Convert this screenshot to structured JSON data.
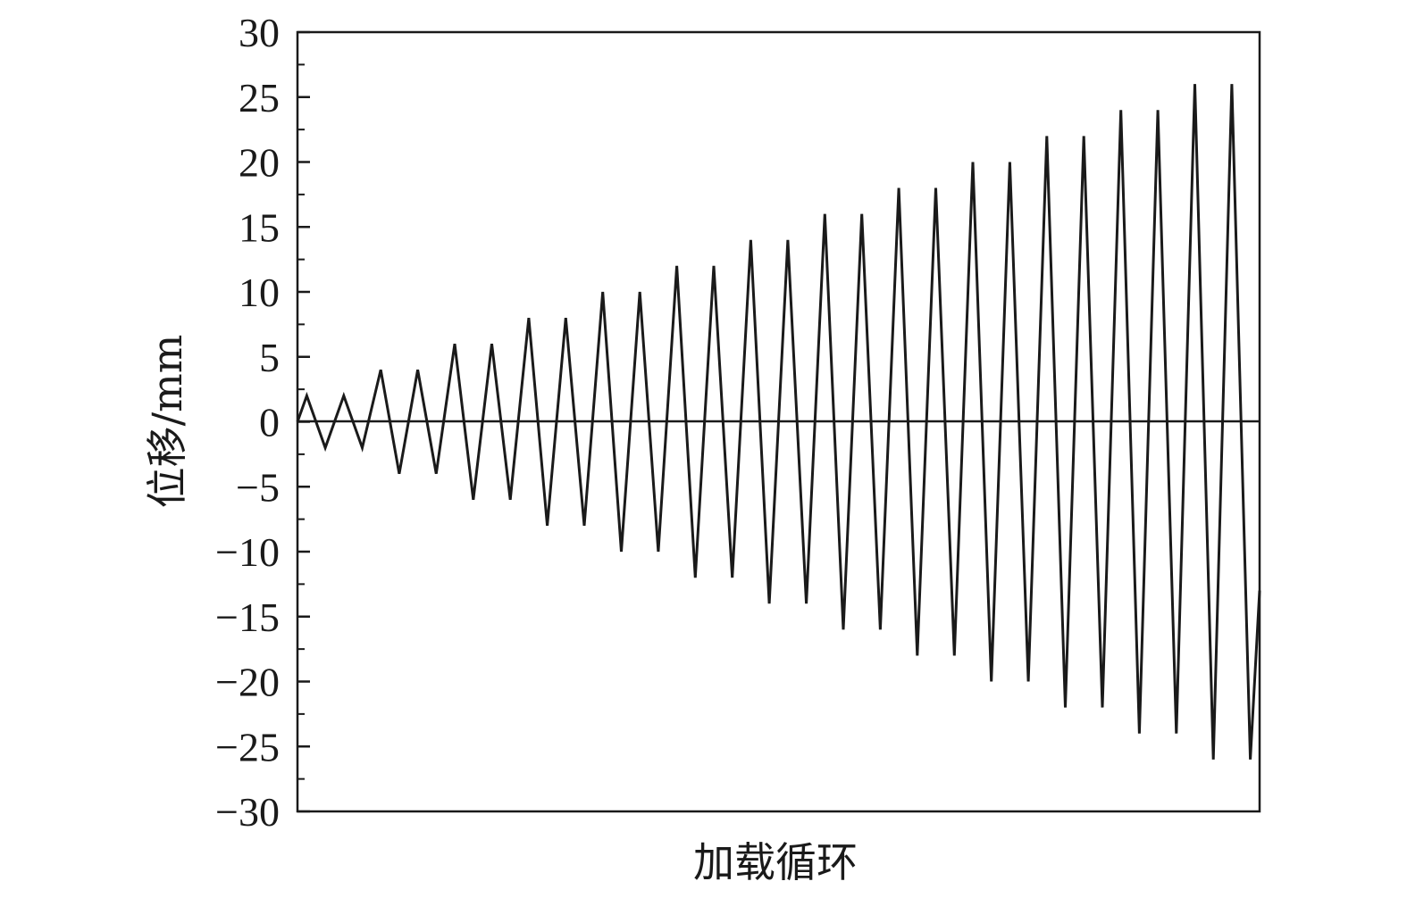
{
  "chart_data": {
    "type": "line",
    "title": "",
    "xlabel": "加载循环",
    "ylabel": "位移/mm",
    "ylim": [
      -30,
      30
    ],
    "yticks": [
      30,
      25,
      20,
      15,
      10,
      5,
      0,
      -5,
      -10,
      -15,
      -20,
      -25,
      -30
    ],
    "ytick_labels": [
      "30",
      "25",
      "20",
      "15",
      "10",
      "5",
      "0",
      "−5",
      "−10",
      "−15",
      "−20",
      "−25",
      "−30"
    ],
    "y_minor_ticks": true,
    "xticks": false,
    "grid": false,
    "legend": "none",
    "reference_line_y": 0,
    "line_color": "#1a1a1a",
    "series": [
      {
        "description": "cyclic loading displacement protocol, two cycles per amplitude",
        "amplitudes_mm": [
          2,
          2,
          4,
          4,
          6,
          6,
          8,
          8,
          10,
          10,
          12,
          12,
          14,
          14,
          16,
          16,
          18,
          18,
          20,
          20,
          22,
          22,
          24,
          24,
          26,
          26
        ],
        "x": [
          0,
          0.5,
          1.5,
          2.5,
          3.5,
          4.5,
          5.5,
          6.5,
          7.5,
          8.5,
          9.5,
          10.5,
          11.5,
          12.5,
          13.5,
          14.5,
          15.5,
          16.5,
          17.5,
          18.5,
          19.5,
          20.5,
          21.5,
          22.5,
          23.5,
          24.5,
          25.5,
          26.5,
          27.5,
          28.5,
          29.5,
          30.5,
          31.5,
          32.5,
          33.5,
          34.5,
          35.5,
          36.5,
          37.5,
          38.5,
          39.5,
          40.5,
          41.5,
          42.5,
          43.5,
          44.5,
          45.5,
          46.5,
          47.5,
          48.5,
          49.5,
          50.5,
          51.5,
          52
        ],
        "y": [
          0,
          2,
          -2,
          2,
          -2,
          4,
          -4,
          4,
          -4,
          6,
          -6,
          6,
          -6,
          8,
          -8,
          8,
          -8,
          10,
          -10,
          10,
          -10,
          12,
          -12,
          12,
          -12,
          14,
          -14,
          14,
          -14,
          16,
          -16,
          16,
          -16,
          18,
          -18,
          18,
          -18,
          20,
          -20,
          20,
          -20,
          22,
          -22,
          22,
          -22,
          24,
          -24,
          24,
          -24,
          26,
          -26,
          26,
          -26,
          -13
        ]
      }
    ],
    "xlim": [
      0,
      52
    ]
  }
}
